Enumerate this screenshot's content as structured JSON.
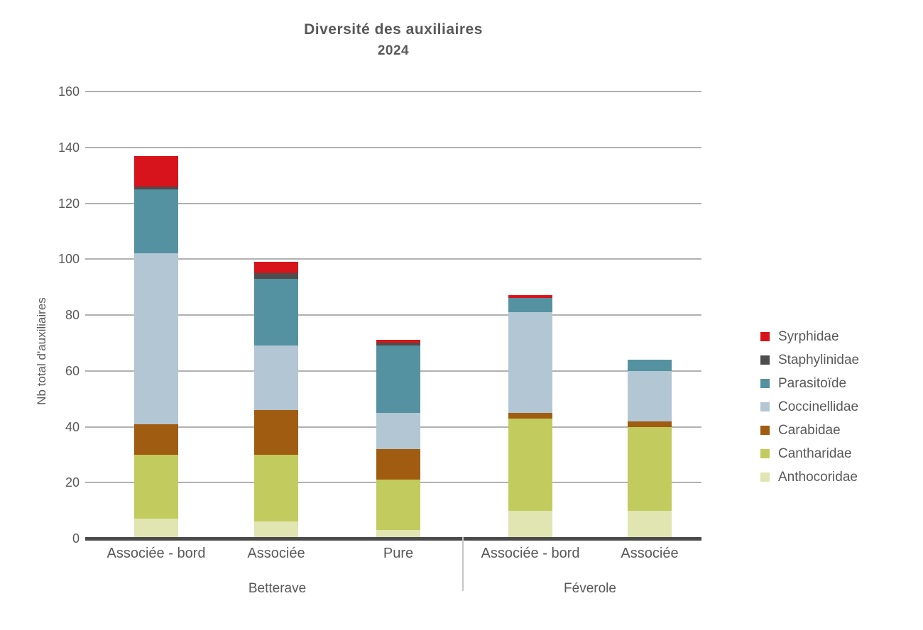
{
  "title": "Diversité des auxiliaires",
  "subtitle": "2024",
  "chart_data": {
    "type": "bar",
    "stacked": true,
    "title": "Diversité des auxiliaires",
    "subtitle": "2024",
    "xlabel": "",
    "ylabel": "Nb total d'auxiliaires",
    "ylim": [
      0,
      160
    ],
    "ytick_step": 20,
    "yticks": [
      0,
      20,
      40,
      60,
      80,
      100,
      120,
      140,
      160
    ],
    "grid": true,
    "legend_position": "right",
    "categories": [
      "Associée - bord",
      "Associée",
      "Pure",
      "Associée - bord",
      "Associée"
    ],
    "groups": [
      {
        "label": "Betterave",
        "bar_indexes": [
          0,
          1,
          2
        ]
      },
      {
        "label": "Féverole",
        "bar_indexes": [
          3,
          4
        ]
      }
    ],
    "series": [
      {
        "name": "Anthocoridae",
        "color": "#e0e5b2",
        "values": [
          7,
          6,
          3,
          10,
          10
        ]
      },
      {
        "name": "Cantharidae",
        "color": "#c2cb5d",
        "values": [
          23,
          24,
          18,
          33,
          30
        ]
      },
      {
        "name": "Carabidae",
        "color": "#a05c10",
        "values": [
          11,
          16,
          11,
          2,
          2
        ]
      },
      {
        "name": "Coccinellidae",
        "color": "#b3c6d3",
        "values": [
          61,
          23,
          13,
          36,
          18
        ]
      },
      {
        "name": "Parasitoïde",
        "color": "#5592a1",
        "values": [
          23,
          24,
          24,
          5,
          4
        ]
      },
      {
        "name": "Staphylinidae",
        "color": "#4d4d4d",
        "values": [
          1,
          2,
          1,
          0,
          0
        ]
      },
      {
        "name": "Syrphidae",
        "color": "#d7141b",
        "values": [
          11,
          4,
          1,
          1,
          0
        ]
      }
    ],
    "totals": [
      137,
      99,
      71,
      87,
      64
    ],
    "legend_top_to_bottom": [
      "Syrphidae",
      "Staphylinidae",
      "Parasitoïde",
      "Coccinellidae",
      "Carabidae",
      "Cantharidae",
      "Anthocoridae"
    ]
  },
  "colors": {
    "text": "#595959",
    "grid": "#b1b1b1",
    "axis": "#4a4a4a",
    "divider": "#c6c6c6",
    "background": "#ffffff"
  }
}
